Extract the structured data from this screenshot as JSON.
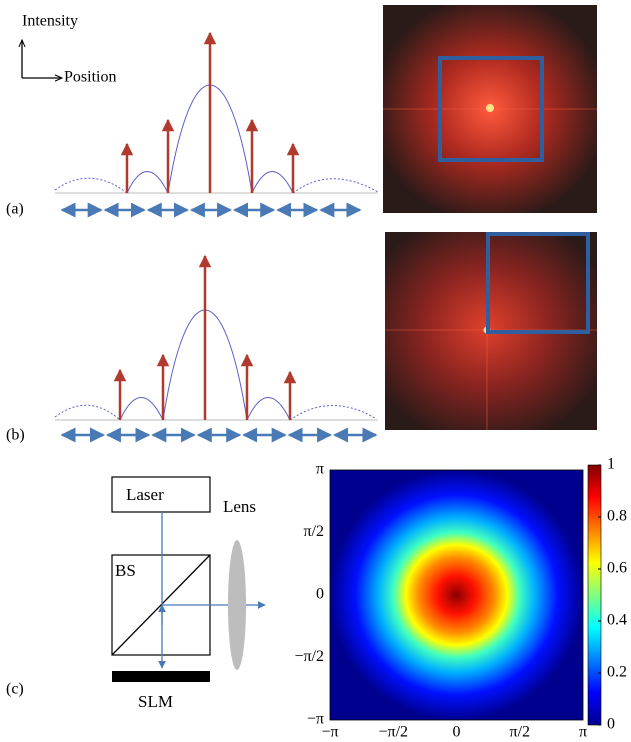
{
  "panel_a": {
    "label": "(a)",
    "y_axis": "Intensity",
    "x_axis": "Position"
  },
  "panel_b": {
    "label": "(b)"
  },
  "panel_c": {
    "label": "(c)",
    "laser": "Laser",
    "beam_splitter": "BS",
    "lens": "Lens",
    "slm": "SLM",
    "heatmap": {
      "yticks": [
        "π",
        "π/2",
        "0",
        "−π/2",
        "−π"
      ],
      "xticks": [
        "−π",
        "−π/2",
        "0",
        "π/2",
        "π"
      ],
      "colorbar": {
        "range": [
          0,
          1
        ],
        "ticks": [
          1,
          0.8,
          0.6,
          0.4,
          0.2,
          0
        ]
      }
    }
  }
}
